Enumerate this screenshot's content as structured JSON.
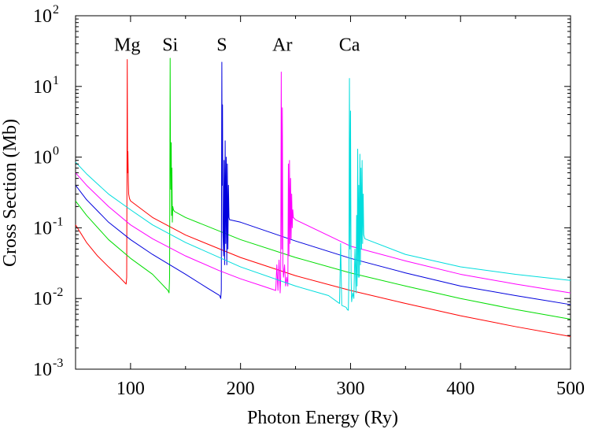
{
  "chart_data": {
    "type": "line",
    "title": "",
    "xlabel": "Photon Energy (Ry)",
    "ylabel": "Cross Section (Mb)",
    "xlim": [
      50,
      500
    ],
    "ylim": [
      0.001,
      100
    ],
    "yscale": "log",
    "grid": false,
    "legend": "none",
    "x_ticks": [
      {
        "value": 100,
        "label": "100"
      },
      {
        "value": 200,
        "label": "200"
      },
      {
        "value": 300,
        "label": "300"
      },
      {
        "value": 400,
        "label": "400"
      },
      {
        "value": 500,
        "label": "500"
      }
    ],
    "y_ticks": [
      {
        "value": 0.001,
        "base": "10",
        "exp": "-3"
      },
      {
        "value": 0.01,
        "base": "10",
        "exp": "-2"
      },
      {
        "value": 0.1,
        "base": "10",
        "exp": "-1"
      },
      {
        "value": 1,
        "base": "10",
        "exp": "0"
      },
      {
        "value": 10,
        "base": "10",
        "exp": "1"
      },
      {
        "value": 100,
        "base": "10",
        "exp": "2"
      }
    ],
    "annotations": [
      {
        "text": "Mg",
        "x": 97,
        "y": 40
      },
      {
        "text": "Si",
        "x": 136,
        "y": 40
      },
      {
        "text": "S",
        "x": 183,
        "y": 40
      },
      {
        "text": "Ar",
        "x": 238,
        "y": 40
      },
      {
        "text": "Ca",
        "x": 299,
        "y": 40
      }
    ],
    "series": [
      {
        "color": "#ff0000",
        "x": [
          50,
          60,
          70,
          80,
          90,
          96,
          96.5,
          97,
          97.3,
          97.6,
          98,
          98.3,
          99,
          100,
          120,
          150,
          200,
          250,
          300,
          350,
          400,
          450,
          500
        ],
        "y": [
          0.11,
          0.062,
          0.04,
          0.028,
          0.02,
          0.016,
          0.02,
          24,
          0.6,
          1.2,
          0.45,
          0.3,
          0.26,
          0.24,
          0.14,
          0.079,
          0.038,
          0.021,
          0.013,
          0.0085,
          0.0057,
          0.004,
          0.0029
        ]
      },
      {
        "color": "#00dd00",
        "x": [
          50,
          60,
          80,
          100,
          120,
          134,
          135,
          135.5,
          136,
          136.3,
          136.6,
          137,
          137.3,
          137.6,
          138,
          138.4,
          139,
          140,
          150,
          200,
          250,
          300,
          350,
          400,
          450,
          500
        ],
        "y": [
          0.24,
          0.15,
          0.068,
          0.037,
          0.022,
          0.013,
          0.012,
          0.02,
          25,
          1.2,
          0.35,
          1.6,
          0.15,
          0.7,
          0.12,
          0.2,
          0.18,
          0.17,
          0.14,
          0.068,
          0.038,
          0.023,
          0.015,
          0.01,
          0.007,
          0.0051
        ]
      },
      {
        "color": "#0000dd",
        "x": [
          50,
          60,
          80,
          100,
          120,
          150,
          170,
          181,
          182,
          182.5,
          183,
          183.3,
          183.6,
          184,
          184.5,
          185,
          185.5,
          186,
          186.5,
          187,
          187.5,
          188,
          188.5,
          189,
          189.5,
          190,
          200,
          250,
          300,
          350,
          400,
          450,
          500
        ],
        "y": [
          0.4,
          0.25,
          0.12,
          0.068,
          0.042,
          0.022,
          0.014,
          0.011,
          0.01,
          0.013,
          22,
          0.4,
          5.5,
          0.08,
          0.04,
          0.9,
          0.03,
          1.7,
          0.06,
          1.0,
          0.03,
          0.8,
          0.05,
          0.4,
          0.14,
          0.13,
          0.12,
          0.065,
          0.037,
          0.023,
          0.015,
          0.011,
          0.0082
        ]
      },
      {
        "color": "#ff00ff",
        "x": [
          50,
          60,
          80,
          100,
          120,
          150,
          180,
          200,
          220,
          232,
          233,
          234,
          235,
          236,
          236.5,
          237,
          237.5,
          238,
          238.5,
          239,
          240,
          241,
          242,
          243,
          243.5,
          244,
          244.5,
          245,
          245.5,
          246,
          246.5,
          247,
          247.5,
          248,
          250,
          300,
          350,
          400,
          450,
          500
        ],
        "y": [
          0.6,
          0.4,
          0.2,
          0.11,
          0.07,
          0.04,
          0.025,
          0.019,
          0.015,
          0.013,
          0.03,
          0.013,
          0.035,
          0.012,
          0.02,
          16,
          0.05,
          5.0,
          0.03,
          0.02,
          0.03,
          0.015,
          0.02,
          0.015,
          0.8,
          0.04,
          0.9,
          0.06,
          0.5,
          0.07,
          0.3,
          0.1,
          0.18,
          0.14,
          0.13,
          0.055,
          0.034,
          0.022,
          0.016,
          0.012
        ]
      },
      {
        "color": "#00dddd",
        "x": [
          50,
          60,
          80,
          100,
          120,
          150,
          200,
          250,
          280,
          290,
          291,
          292,
          296,
          297,
          298,
          298.5,
          299,
          299.5,
          300,
          300.5,
          301,
          302,
          303,
          304,
          305,
          305.5,
          306,
          306.5,
          307,
          307.5,
          308,
          308.5,
          309,
          309.5,
          310,
          310.5,
          311,
          311.5,
          312,
          313,
          315,
          350,
          400,
          450,
          500
        ],
        "y": [
          0.85,
          0.58,
          0.3,
          0.18,
          0.11,
          0.062,
          0.028,
          0.015,
          0.011,
          0.0085,
          0.06,
          0.008,
          0.0075,
          0.007,
          0.0068,
          0.02,
          13,
          0.05,
          4.5,
          0.02,
          0.009,
          0.012,
          0.01,
          0.05,
          0.012,
          0.15,
          0.015,
          1.3,
          0.02,
          0.4,
          0.02,
          1.1,
          0.03,
          0.7,
          0.05,
          0.9,
          0.06,
          0.3,
          0.08,
          0.07,
          0.068,
          0.042,
          0.028,
          0.022,
          0.018
        ]
      }
    ]
  }
}
